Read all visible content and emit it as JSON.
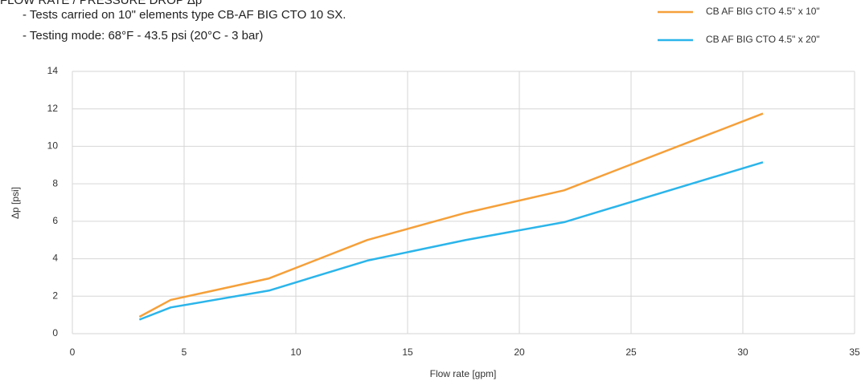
{
  "chart_data": {
    "type": "line",
    "title": "FLOW RATE / PRESSURE DROP Δp",
    "notes": [
      "- Tests carried on 10\" elements type CB-AF BIG CTO 10 SX.",
      "- Testing mode: 68°F - 43.5 psi (20°C - 3 bar)"
    ],
    "x_label": "Flow rate [gpm]",
    "y_label": "Δp [psi]",
    "x": [
      3,
      4.4,
      8.8,
      13.2,
      17.6,
      22,
      30.9
    ],
    "series": [
      {
        "name": "CB AF BIG CTO 4.5\" x 10\"",
        "color": "#f5a03a",
        "values": [
          0.9,
          1.8,
          2.95,
          5.0,
          6.45,
          7.65,
          11.75
        ]
      },
      {
        "name": "CB AF BIG CTO 4.5\" x 20\"",
        "color": "#2bb5ea",
        "values": [
          0.75,
          1.4,
          2.3,
          3.9,
          5.0,
          5.95,
          9.15
        ]
      }
    ],
    "xlim": [
      0,
      35
    ],
    "xticks": [
      0,
      5,
      10,
      15,
      20,
      25,
      30,
      35
    ],
    "ylim": [
      0,
      14
    ],
    "yticks": [
      0,
      2,
      4,
      6,
      8,
      10,
      12,
      14
    ],
    "grid": true,
    "legend": "top-right"
  }
}
